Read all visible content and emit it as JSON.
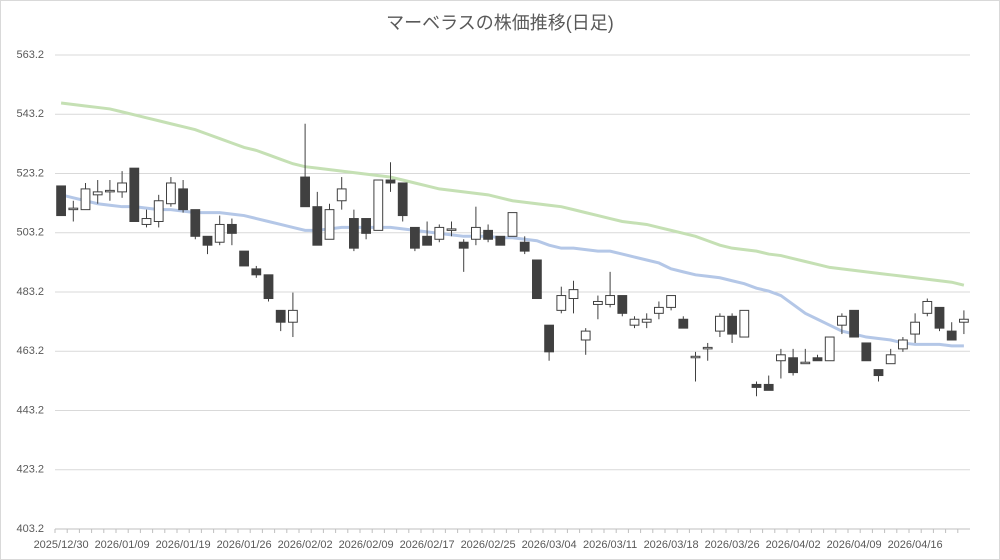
{
  "chart_data": {
    "type": "candlestick",
    "title": "マーベラスの株価推移(日足)",
    "categories": [
      "2025/12/30",
      null,
      null,
      null,
      null,
      "2026/01/09",
      null,
      null,
      null,
      null,
      "2026/01/19",
      null,
      null,
      null,
      null,
      "2026/01/26",
      null,
      null,
      null,
      null,
      "2026/02/02",
      null,
      null,
      null,
      null,
      "2026/02/09",
      null,
      null,
      null,
      null,
      "2026/02/17",
      null,
      null,
      null,
      null,
      "2026/02/25",
      null,
      null,
      null,
      null,
      "2026/03/04",
      null,
      null,
      null,
      null,
      "2026/03/11",
      null,
      null,
      null,
      null,
      "2026/03/18",
      null,
      null,
      null,
      null,
      "2026/03/26",
      null,
      null,
      null,
      null,
      "2026/04/02",
      null,
      null,
      null,
      null,
      "2026/04/09",
      null,
      null,
      null,
      null,
      "2026/04/16",
      null,
      null,
      null,
      null
    ],
    "open": [
      519,
      511,
      511,
      516,
      517,
      517,
      525,
      506,
      507,
      513,
      518,
      511,
      502,
      500,
      506,
      497,
      491,
      489,
      477,
      473,
      522,
      512,
      501,
      514,
      508,
      508,
      504,
      521,
      520,
      505,
      502,
      501,
      504,
      500,
      501,
      504,
      502,
      502,
      500,
      494,
      472,
      477,
      481,
      467,
      479,
      479,
      482,
      472,
      473,
      476,
      478,
      474,
      461,
      464,
      470,
      475,
      468,
      452,
      452,
      460,
      461,
      459,
      461,
      460,
      472,
      477,
      466,
      457,
      459,
      464,
      469,
      476,
      478,
      470,
      473
    ],
    "high": [
      519,
      514,
      520,
      521,
      521,
      524,
      525,
      511,
      516,
      522,
      521,
      511,
      502,
      509,
      508,
      497,
      492,
      489,
      477,
      483,
      540,
      517,
      513,
      522,
      511,
      508,
      521,
      527,
      520,
      505,
      507,
      506,
      507,
      501,
      512,
      506,
      502,
      510,
      502,
      494,
      472,
      485,
      487,
      471,
      482,
      490,
      482,
      475,
      476,
      480,
      482,
      475,
      463,
      466,
      476,
      476,
      477,
      453,
      455,
      464,
      464,
      464,
      462,
      468,
      476,
      477,
      466,
      457,
      464,
      468,
      476,
      481,
      478,
      473,
      477
    ],
    "low": [
      509,
      507,
      511,
      513,
      514,
      515,
      507,
      505,
      505,
      512,
      510,
      501,
      496,
      499,
      499,
      492,
      488,
      480,
      470,
      468,
      512,
      499,
      501,
      511,
      497,
      501,
      504,
      517,
      507,
      497,
      499,
      500,
      502,
      490,
      499,
      500,
      499,
      502,
      496,
      481,
      460,
      476,
      476,
      462,
      474,
      478,
      475,
      471,
      471,
      474,
      477,
      471,
      453,
      460,
      468,
      466,
      468,
      448,
      450,
      454,
      455,
      459,
      460,
      460,
      469,
      468,
      460,
      453,
      459,
      463,
      466,
      475,
      470,
      467,
      469
    ],
    "close": [
      509,
      511.5,
      518,
      517,
      517.5,
      520,
      507,
      508,
      514,
      520,
      511,
      502,
      499,
      506,
      503,
      492,
      489,
      481,
      473,
      477,
      512,
      499,
      511,
      518,
      498,
      503,
      521,
      520,
      509,
      498,
      499,
      505,
      504.5,
      498,
      505,
      501,
      499,
      510,
      497,
      481,
      463,
      482,
      484,
      470,
      480,
      482,
      476,
      474,
      474,
      478,
      482,
      471,
      461.5,
      464.5,
      475,
      469,
      477,
      451,
      450,
      462,
      456,
      459.5,
      460,
      468,
      475,
      468,
      460,
      455,
      462,
      467,
      473,
      480,
      471,
      467,
      474
    ],
    "up_color": "#ffffff",
    "down_color": "#404040",
    "wick_color": "#404040",
    "lines": [
      {
        "color": "#b4c7e7",
        "values": [
          516,
          515,
          514,
          513,
          512.5,
          512,
          512,
          511.5,
          511,
          511,
          510.5,
          510,
          510,
          510,
          509.5,
          509,
          508,
          507,
          506,
          505,
          504,
          504,
          504.5,
          505,
          505,
          505,
          505,
          505,
          504.5,
          504,
          503.5,
          503,
          502.5,
          502,
          502,
          502,
          501.5,
          501.5,
          501,
          500.5,
          499,
          498,
          498,
          497.5,
          497,
          497,
          496,
          495,
          494,
          493,
          491,
          490,
          489,
          488.5,
          488,
          487,
          486,
          484.5,
          483.5,
          482,
          479,
          476,
          474,
          472,
          470,
          469,
          468,
          467.5,
          467,
          466,
          465.5,
          465.5,
          465.5,
          465,
          465
        ]
      },
      {
        "color": "#c5e0b4",
        "values": [
          547,
          546.5,
          546,
          545.5,
          545,
          544,
          543,
          542,
          541,
          540,
          539,
          538,
          536.5,
          535,
          533.5,
          532,
          531,
          529.5,
          528,
          526.5,
          525.5,
          525,
          524.5,
          524,
          523.5,
          523,
          522.5,
          522,
          521,
          520,
          519,
          518,
          517.5,
          517,
          516.5,
          516,
          515,
          514,
          513.5,
          513,
          512.5,
          512,
          511,
          510,
          509,
          508,
          507,
          506.5,
          506,
          505,
          504,
          503,
          502,
          500.5,
          499,
          498,
          497.5,
          497,
          496,
          495.5,
          494.5,
          493.5,
          492.5,
          491.5,
          491,
          490.5,
          490,
          489.5,
          489,
          488.5,
          488,
          487.5,
          487,
          486.5,
          485.5
        ]
      }
    ],
    "ylim": [
      403.2,
      563.2
    ],
    "yticks": [
      403.2,
      423.2,
      443.2,
      463.2,
      483.2,
      503.2,
      523.2,
      543.2,
      563.2
    ],
    "grid": true
  }
}
